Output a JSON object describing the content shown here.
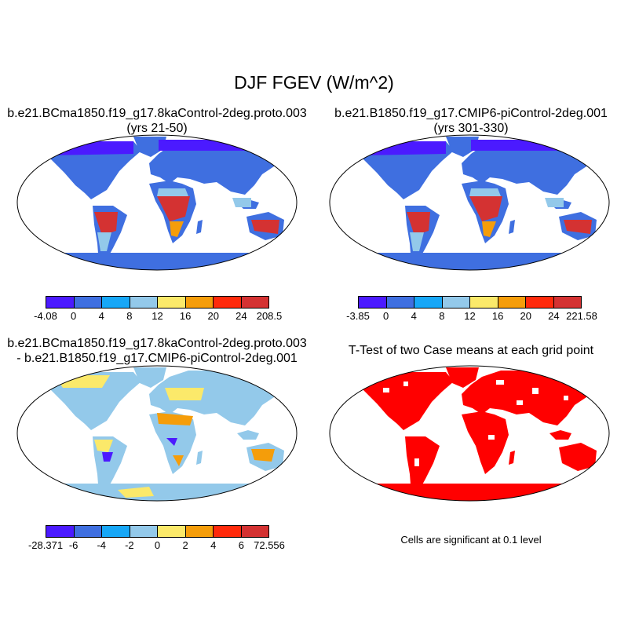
{
  "title": "DJF FGEV (W/m^2)",
  "panels": [
    {
      "title_line1": "b.e21.BCma1850.f19_g17.8kaControl-2deg.proto.003",
      "title_line2": "(yrs 21-50)",
      "colorbar": {
        "ticks": [
          "-4.08",
          "0",
          "4",
          "8",
          "12",
          "16",
          "20",
          "24",
          "208.5"
        ],
        "colors": [
          "#4b1aff",
          "#3f6fe0",
          "#17a7f7",
          "#93c9ea",
          "#fbe96a",
          "#f59d0a",
          "#ff2a0b",
          "#d43232"
        ]
      }
    },
    {
      "title_line1": "b.e21.B1850.f19_g17.CMIP6-piControl-2deg.001",
      "title_line2": "(yrs 301-330)",
      "colorbar": {
        "ticks": [
          "-3.85",
          "0",
          "4",
          "8",
          "12",
          "16",
          "20",
          "24",
          "221.58"
        ],
        "colors": [
          "#4b1aff",
          "#3f6fe0",
          "#17a7f7",
          "#93c9ea",
          "#fbe96a",
          "#f59d0a",
          "#ff2a0b",
          "#d43232"
        ]
      }
    },
    {
      "title_line1": "b.e21.BCma1850.f19_g17.8kaControl-2deg.proto.003",
      "title_line2": "- b.e21.B1850.f19_g17.CMIP6-piControl-2deg.001",
      "colorbar": {
        "ticks": [
          "-28.371",
          "-6",
          "-4",
          "-2",
          "0",
          "2",
          "4",
          "6",
          "72.556"
        ],
        "colors": [
          "#4b1aff",
          "#3f6fe0",
          "#17a7f7",
          "#93c9ea",
          "#fbe96a",
          "#f59d0a",
          "#ff2a0b",
          "#d43232"
        ]
      }
    },
    {
      "title_line1": "T-Test of two Case means at each grid point",
      "note": "Cells are significant at 0.1 level",
      "color": "#ff0000"
    }
  ]
}
